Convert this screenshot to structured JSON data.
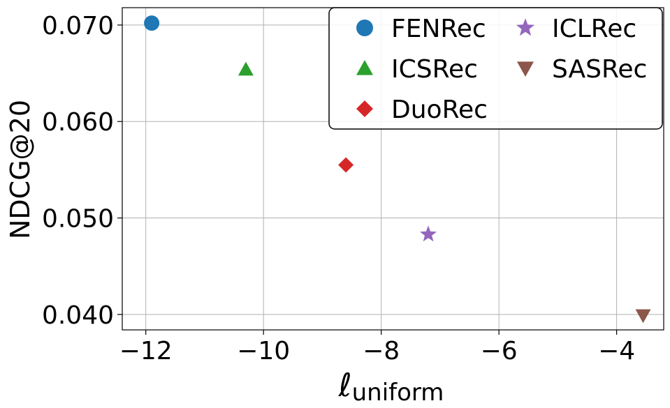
{
  "chart_data": {
    "type": "scatter",
    "title": "",
    "xlabel_main": "ℓ",
    "xlabel_sub": "uniform",
    "ylabel": "NDCG@20",
    "xlim": [
      -12.4,
      -3.2
    ],
    "ylim": [
      0.0384,
      0.0718
    ],
    "xticks": [
      -12,
      -10,
      -8,
      -6,
      -4
    ],
    "xtick_labels": [
      "−12",
      "−10",
      "−8",
      "−6",
      "−4"
    ],
    "yticks": [
      0.04,
      0.05,
      0.06,
      0.07
    ],
    "ytick_labels": [
      "0.040",
      "0.050",
      "0.060",
      "0.070"
    ],
    "grid": true,
    "legend_position": "top-right",
    "legend_columns": 2,
    "series": [
      {
        "name": "FENRec",
        "x": -11.9,
        "y": 0.0702,
        "color": "#1f77b4",
        "marker": "circle"
      },
      {
        "name": "ICSRec",
        "x": -10.3,
        "y": 0.0654,
        "color": "#2ca02c",
        "marker": "triangle-up"
      },
      {
        "name": "DuoRec",
        "x": -8.6,
        "y": 0.0555,
        "color": "#d62728",
        "marker": "diamond"
      },
      {
        "name": "ICLRec",
        "x": -7.2,
        "y": 0.0483,
        "color": "#9467bd",
        "marker": "star"
      },
      {
        "name": "SASRec",
        "x": -3.55,
        "y": 0.0399,
        "color": "#8c564b",
        "marker": "triangle-down"
      }
    ]
  }
}
